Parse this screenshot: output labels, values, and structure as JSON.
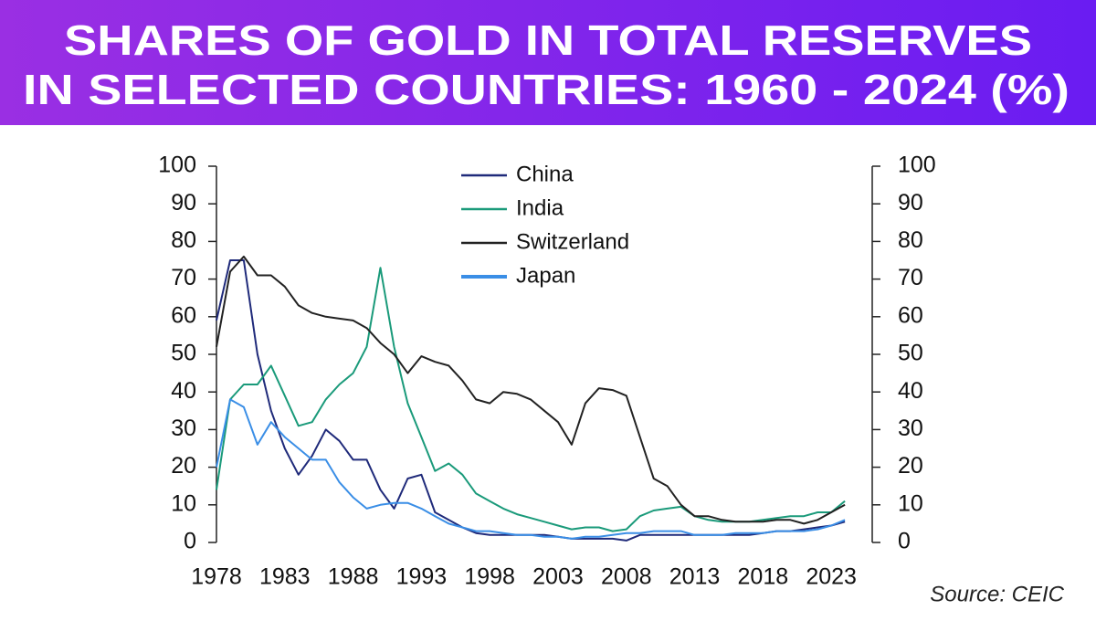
{
  "chart_data": {
    "type": "line",
    "title": [
      "SHARES OF GOLD IN TOTAL RESERVES",
      "IN SELECTED COUNTRIES: 1960 - 2024 (%)"
    ],
    "source": "Source: CEIC",
    "x": [
      1978,
      1979,
      1980,
      1981,
      1982,
      1983,
      1984,
      1985,
      1986,
      1987,
      1988,
      1989,
      1990,
      1991,
      1992,
      1993,
      1994,
      1995,
      1996,
      1997,
      1998,
      1999,
      2000,
      2001,
      2002,
      2003,
      2004,
      2005,
      2006,
      2007,
      2008,
      2009,
      2010,
      2011,
      2012,
      2013,
      2014,
      2015,
      2016,
      2017,
      2018,
      2019,
      2020,
      2021,
      2022,
      2023,
      2024
    ],
    "series": [
      {
        "name": "China",
        "color": "#1f2a7a",
        "values": [
          59,
          75,
          75,
          50,
          35,
          25,
          18,
          23,
          30,
          27,
          22,
          22,
          14,
          9,
          17,
          18,
          8,
          6,
          4,
          2.5,
          2,
          2,
          2,
          2,
          2,
          1.5,
          1,
          1,
          1,
          1,
          0.5,
          2,
          2,
          2,
          2,
          2,
          2,
          2,
          2,
          2,
          2.5,
          3,
          3,
          3.5,
          4,
          4.5,
          5.5
        ]
      },
      {
        "name": "India",
        "color": "#1a9a7a",
        "values": [
          14,
          38,
          42,
          42,
          47,
          39,
          31,
          32,
          38,
          42,
          45,
          52,
          73,
          52,
          37,
          28,
          19,
          21,
          18,
          13,
          11,
          9,
          7.5,
          6.5,
          5.5,
          4.5,
          3.5,
          4,
          4,
          3,
          3.5,
          7,
          8.5,
          9,
          9.5,
          7,
          6,
          5.5,
          5.5,
          5.5,
          6,
          6.5,
          7,
          7,
          8,
          8,
          11
        ]
      },
      {
        "name": "Switzerland",
        "color": "#222222",
        "values": [
          52,
          72,
          76,
          71,
          71,
          68,
          63,
          61,
          60,
          59.5,
          59,
          57,
          53,
          50,
          45,
          49.5,
          48,
          47,
          43,
          38,
          37,
          40,
          39.5,
          38,
          35,
          32,
          26,
          37,
          41,
          40.5,
          39,
          28,
          17,
          15,
          10,
          7,
          7,
          6,
          5.5,
          5.5,
          5.5,
          6,
          6,
          5,
          6,
          8,
          10
        ]
      },
      {
        "name": "Japan",
        "color": "#3a8ee6",
        "values": [
          20,
          38,
          36,
          26,
          32,
          28,
          25,
          22,
          22,
          16,
          12,
          9,
          10,
          10.5,
          10.5,
          9,
          7,
          5,
          4,
          3,
          3,
          2.5,
          2,
          2,
          1.5,
          1.5,
          1,
          1.5,
          1.5,
          2,
          2.5,
          2.5,
          3,
          3,
          3,
          2,
          2,
          2,
          2.5,
          2.5,
          2.5,
          3,
          3,
          3,
          3.5,
          4.5,
          6
        ]
      }
    ],
    "xlim": [
      1978,
      2026
    ],
    "xticks": [
      1978,
      1983,
      1988,
      1993,
      1998,
      2003,
      2008,
      2013,
      2018,
      2023
    ],
    "ylim": [
      0,
      100
    ],
    "yticks": [
      0,
      10,
      20,
      30,
      40,
      50,
      60,
      70,
      80,
      90,
      100
    ],
    "y2lim": [
      0,
      100
    ],
    "y2ticks": [
      0,
      10,
      20,
      30,
      40,
      50,
      60,
      70,
      80,
      90,
      100
    ]
  }
}
